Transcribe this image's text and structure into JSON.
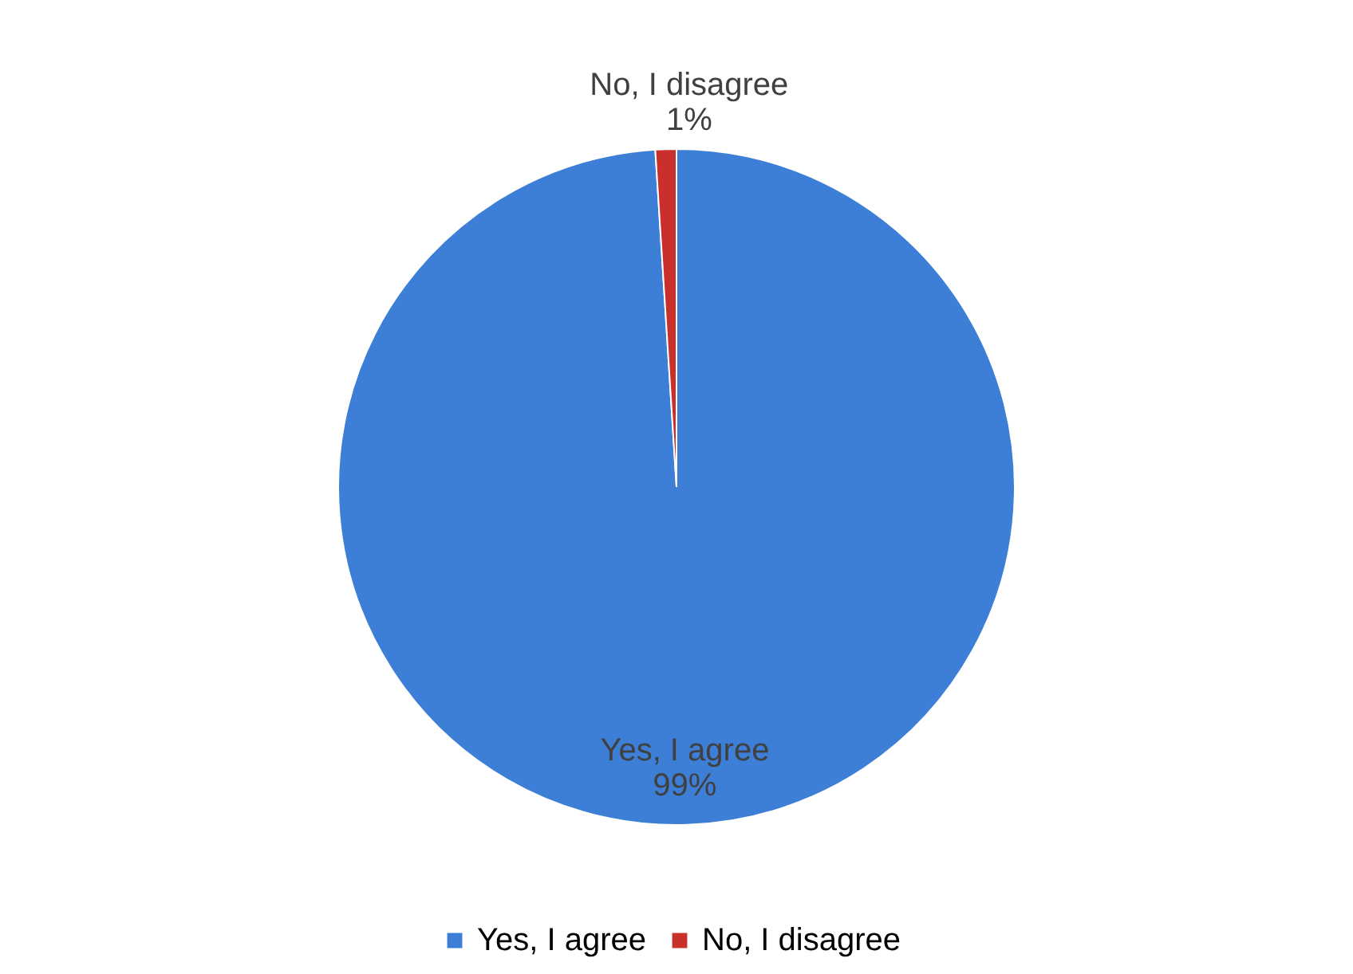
{
  "chart_data": {
    "type": "pie",
    "categories": [
      "Yes, I agree",
      "No, I disagree"
    ],
    "values": [
      99,
      1
    ],
    "colors": [
      "#3d7fd6",
      "#c9302c"
    ],
    "value_labels": [
      "99%",
      "1%"
    ],
    "legend": "bottom"
  }
}
